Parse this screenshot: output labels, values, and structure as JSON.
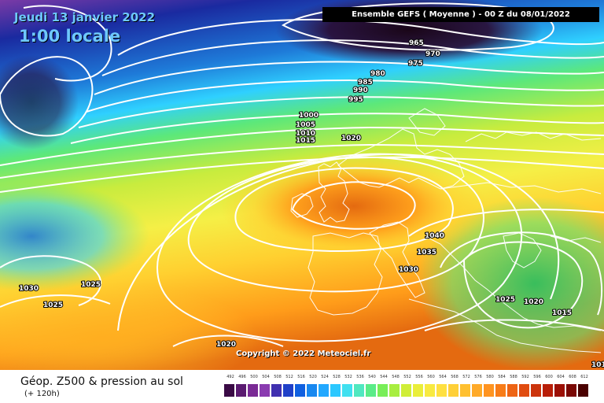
{
  "header": {
    "date": "Jeudi 13 janvier 2022",
    "time": "1:00 locale",
    "model": "Ensemble GEFS  ( Moyenne )  -  00 Z du 08/01/2022"
  },
  "copyright": "Copyright © 2022 Meteociel.fr",
  "footer": {
    "title": "Géop. Z500 & pression au sol",
    "subtitle": "(+ 120h)"
  },
  "isobar_labels": [
    "965",
    "970",
    "975",
    "980",
    "985",
    "990",
    "995",
    "1000",
    "1005",
    "1010",
    "1015",
    "1020",
    "1040",
    "1035",
    "1030",
    "1020",
    "1030",
    "1025",
    "1025",
    "1020",
    "1015",
    "1025",
    "1020",
    "101"
  ],
  "colors": {
    "stops": [
      "#7a3aa6",
      "#3d0f4a",
      "#1a2aa0",
      "#1e7ad8",
      "#2fd0ff",
      "#5ce87a",
      "#c8ec3e",
      "#f5ef46",
      "#ffd030",
      "#ff9c1a",
      "#e46a10"
    ]
  },
  "scale": {
    "labels": [
      "492",
      "496",
      "500",
      "504",
      "508",
      "512",
      "516",
      "520",
      "524",
      "528",
      "532",
      "536",
      "540",
      "544",
      "548",
      "552",
      "556",
      "560",
      "564",
      "568",
      "572",
      "576",
      "580",
      "584",
      "588",
      "592",
      "596",
      "600",
      "604",
      "608",
      "612"
    ],
    "colors": [
      "#3a0a45",
      "#5a1a70",
      "#7a2a95",
      "#8a3bb0",
      "#4030b0",
      "#2040c8",
      "#1060e0",
      "#1888f0",
      "#22a8ff",
      "#2cc8ff",
      "#40e0f0",
      "#50e8c0",
      "#5aec88",
      "#78ee58",
      "#a8ee40",
      "#d0ee38",
      "#eaee3a",
      "#f8ea40",
      "#ffe040",
      "#ffd038",
      "#ffc030",
      "#ffaa28",
      "#ff9420",
      "#f87c18",
      "#ee6414",
      "#e04c10",
      "#cc340c",
      "#b81e08",
      "#9c1006",
      "#7a0804",
      "#4a0000"
    ]
  }
}
